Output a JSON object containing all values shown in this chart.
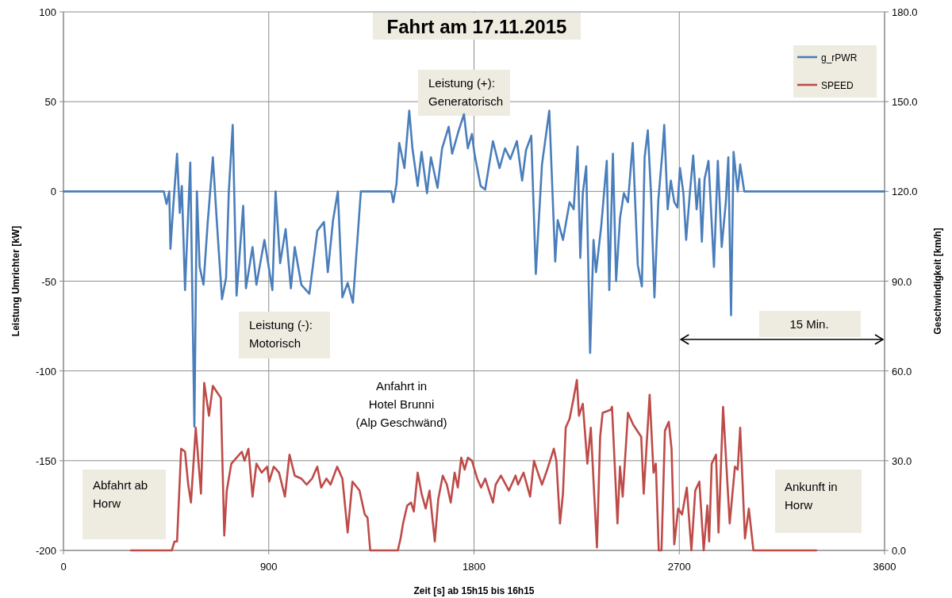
{
  "chart_data": {
    "type": "line",
    "title": "Fahrt am 17.11.2015",
    "xlabel": "Zeit [s] ab 15h15 bis 16h15",
    "ylabel": "Leistung Umrichter [kW]",
    "y2label": "Geschwindigkeit  [km/h]",
    "xlim": [
      0,
      3600
    ],
    "xticks": [
      0,
      900,
      1800,
      2700,
      3600
    ],
    "ylim": [
      -200,
      100
    ],
    "yticks": [
      -200,
      -150,
      -100,
      -50,
      0,
      50,
      100
    ],
    "y2lim": [
      0,
      180
    ],
    "y2ticks": [
      {
        "value": 0,
        "label": "0.0"
      },
      {
        "value": 30,
        "label": "30.0"
      },
      {
        "value": 60,
        "label": "60.0"
      },
      {
        "value": 90,
        "label": "90.0"
      },
      {
        "value": 120,
        "label": "120.0"
      },
      {
        "value": 150,
        "label": "150.0"
      },
      {
        "value": 180,
        "label": "180.0"
      }
    ],
    "grid": true,
    "legend": "top right",
    "marker": "none",
    "line_style": "solid",
    "annotations": [
      "Leistung (+):\nGeneratorisch",
      "Leistung (-):\nMotorisch",
      "Anfahrt in\nHotel Brunni\n(Alp Geschwänd)",
      "Abfahrt ab\nHorw",
      "Ankunft in\nHorw",
      "15 Min."
    ],
    "series": [
      {
        "name": "g_rPWR",
        "color": "#4a7ebb",
        "x": [
          0,
          435,
          440,
          452,
          464,
          469,
          481,
          498,
          510,
          519,
          533,
          556,
          574,
          585,
          597,
          614,
          632,
          655,
          672,
          695,
          713,
          725,
          742,
          759,
          788,
          800,
          829,
          846,
          881,
          916,
          930,
          950,
          974,
          997,
          1014,
          1043,
          1078,
          1113,
          1142,
          1159,
          1182,
          1203,
          1223,
          1246,
          1269,
          1287,
          1304,
          1426,
          1437,
          1446,
          1460,
          1472,
          1495,
          1516,
          1530,
          1553,
          1570,
          1594,
          1611,
          1640,
          1660,
          1689,
          1704,
          1733,
          1756,
          1773,
          1791,
          1802,
          1829,
          1849,
          1883,
          1912,
          1936,
          1959,
          1988,
          2011,
          2028,
          2051,
          2071,
          2098,
          2130,
          2156,
          2167,
          2190,
          2219,
          2237,
          2254,
          2266,
          2277,
          2292,
          2309,
          2324,
          2335,
          2358,
          2382,
          2393,
          2409,
          2423,
          2440,
          2457,
          2475,
          2496,
          2518,
          2536,
          2548,
          2562,
          2576,
          2591,
          2608,
          2626,
          2634,
          2649,
          2663,
          2678,
          2692,
          2703,
          2718,
          2730,
          2747,
          2761,
          2776,
          2788,
          2799,
          2811,
          2828,
          2852,
          2869,
          2886,
          2904,
          2915,
          2927,
          2938,
          2956,
          2967,
          2985,
          3600
        ],
        "values": [
          0,
          0,
          0,
          -7,
          0,
          -32,
          -9,
          21,
          -12,
          3,
          -55,
          16,
          -131,
          0,
          -42,
          -52,
          -18,
          19,
          -16,
          -60,
          -48,
          0,
          37,
          -58,
          -8,
          -54,
          -31,
          -52,
          -27,
          -55,
          0,
          -40,
          -21,
          -54,
          -31,
          -52,
          -57,
          -22,
          -17,
          -45,
          -16,
          0,
          -59,
          -51,
          -62,
          -30,
          0,
          0,
          0,
          -6,
          4,
          27,
          13,
          45,
          24,
          3,
          22,
          -1,
          19,
          2,
          24,
          36,
          21,
          34,
          43,
          24,
          32,
          21,
          3,
          1,
          28,
          13,
          24,
          18,
          28,
          6,
          23,
          31,
          -46,
          15,
          45,
          -39,
          -16,
          -27,
          -6,
          -10,
          25,
          -37,
          -1,
          14,
          -90,
          -27,
          -45,
          -19,
          17,
          -55,
          21,
          -50,
          -15,
          -1,
          -6,
          27,
          -41,
          -53,
          19,
          34,
          -1,
          -59,
          -5,
          22,
          37,
          -10,
          6,
          -6,
          -9,
          13,
          -1,
          -27,
          0,
          20,
          -10,
          7,
          -28,
          7,
          17,
          -42,
          17,
          -31,
          -6,
          19,
          -69,
          22,
          0,
          15,
          0,
          0
        ]
      },
      {
        "name": "SPEED",
        "color": "#be4b48",
        "axis": "y2",
        "x": [
          296,
          475,
          487,
          498,
          516,
          533,
          547,
          559,
          580,
          603,
          617,
          638,
          655,
          672,
          690,
          705,
          716,
          736,
          759,
          782,
          794,
          811,
          829,
          846,
          869,
          893,
          902,
          922,
          945,
          971,
          991,
          1014,
          1043,
          1066,
          1090,
          1113,
          1130,
          1153,
          1171,
          1200,
          1223,
          1246,
          1267,
          1298,
          1321,
          1333,
          1345,
          1466,
          1478,
          1489,
          1507,
          1524,
          1536,
          1553,
          1570,
          1588,
          1605,
          1628,
          1643,
          1663,
          1681,
          1698,
          1715,
          1729,
          1744,
          1759,
          1773,
          1791,
          1814,
          1831,
          1849,
          1866,
          1883,
          1895,
          1918,
          1953,
          1982,
          1993,
          2017,
          2046,
          2063,
          2080,
          2098,
          2121,
          2150,
          2161,
          2177,
          2190,
          2202,
          2219,
          2237,
          2251,
          2260,
          2277,
          2297,
          2312,
          2339,
          2353,
          2364,
          2399,
          2405,
          2429,
          2440,
          2452,
          2475,
          2498,
          2533,
          2544,
          2570,
          2587,
          2597,
          2610,
          2622,
          2637,
          2654,
          2666,
          2678,
          2695,
          2712,
          2733,
          2753,
          2770,
          2788,
          2807,
          2823,
          2831,
          2842,
          2861,
          2872,
          2892,
          2921,
          2944,
          2956,
          2967,
          2988,
          3005,
          3025,
          3300
        ],
        "values": [
          0,
          0,
          3,
          3,
          34,
          33,
          22,
          16,
          41,
          19,
          56,
          45,
          55,
          53,
          51,
          5,
          20,
          29,
          31,
          33,
          30,
          34,
          18,
          29,
          26,
          28,
          23,
          28,
          26,
          18,
          32,
          25,
          24,
          22,
          24,
          28,
          21,
          24,
          22,
          28,
          24,
          6,
          23,
          20,
          12,
          11,
          0,
          0,
          4,
          9,
          15,
          16,
          13,
          26,
          19,
          14,
          20,
          3,
          17,
          25,
          22,
          16,
          26,
          21,
          31,
          27,
          31,
          30,
          24,
          21,
          24,
          20,
          16,
          22,
          25,
          20,
          25,
          22,
          26,
          18,
          30,
          26,
          22,
          27,
          34,
          30,
          9,
          19,
          41,
          44,
          51,
          57,
          45,
          49,
          29,
          41,
          1,
          38,
          46,
          47,
          48,
          9,
          28,
          18,
          46,
          42,
          38,
          19,
          52,
          26,
          29,
          0,
          0,
          40,
          43,
          34,
          2,
          14,
          12,
          21,
          0,
          20,
          23,
          0,
          15,
          3,
          29,
          32,
          6,
          48,
          9,
          28,
          27,
          41,
          4,
          14,
          0,
          0
        ]
      }
    ]
  }
}
